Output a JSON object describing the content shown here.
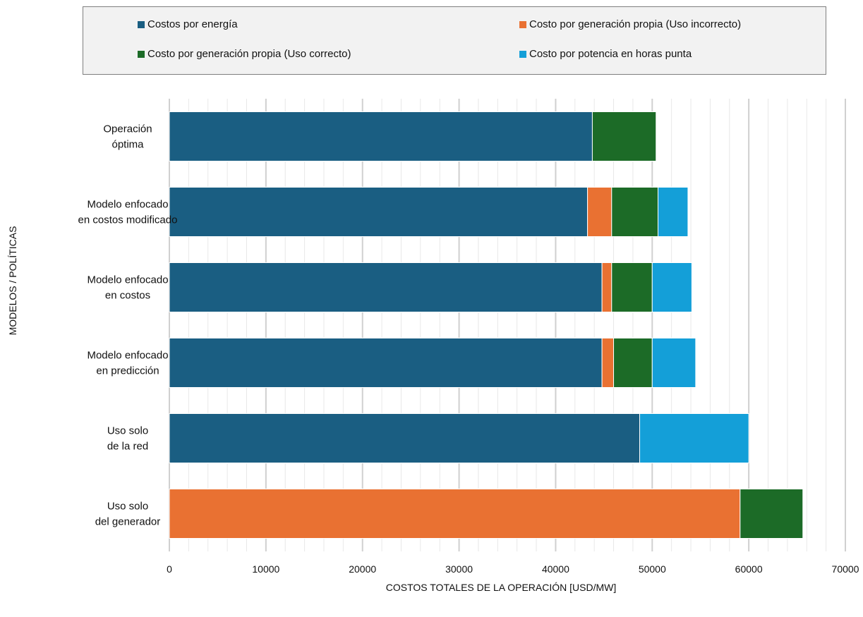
{
  "chart_data": {
    "type": "bar",
    "orientation": "horizontal",
    "stacked": true,
    "categories": [
      [
        "Operación",
        "óptima"
      ],
      [
        "Modelo enfocado",
        "en costos modificado"
      ],
      [
        "Modelo enfocado",
        "en costos"
      ],
      [
        "Modelo enfocado",
        "en predicción"
      ],
      [
        "Uso solo",
        "de la red"
      ],
      [
        "Uso solo",
        "del generador"
      ]
    ],
    "series": [
      {
        "name": "Costos por energía",
        "color": "#1a5e82",
        "values": [
          43800,
          43300,
          44800,
          44800,
          48700,
          0
        ]
      },
      {
        "name": "Costo por generación propia (Uso incorrecto)",
        "color": "#e97132",
        "values": [
          0,
          2500,
          1000,
          1200,
          0,
          59100
        ]
      },
      {
        "name": "Costo por generación propia (Uso correcto)",
        "color": "#1c6b27",
        "values": [
          6600,
          4800,
          4200,
          4000,
          0,
          6500
        ]
      },
      {
        "name": "Costo por potencia en horas punta",
        "color": "#149fd8",
        "values": [
          0,
          3100,
          4100,
          4500,
          11300,
          0
        ]
      }
    ],
    "xlim": [
      0,
      70000
    ],
    "xticks": [
      0,
      10000,
      20000,
      30000,
      40000,
      50000,
      60000,
      70000
    ],
    "minor_tick_step": 2000,
    "xlabel": "COSTOS TOTALES DE LA OPERACIÓN [USD/MW]",
    "ylabel": "MODELOS / POLÍTICAS",
    "title": "",
    "legend_position": "top",
    "grid": true
  }
}
